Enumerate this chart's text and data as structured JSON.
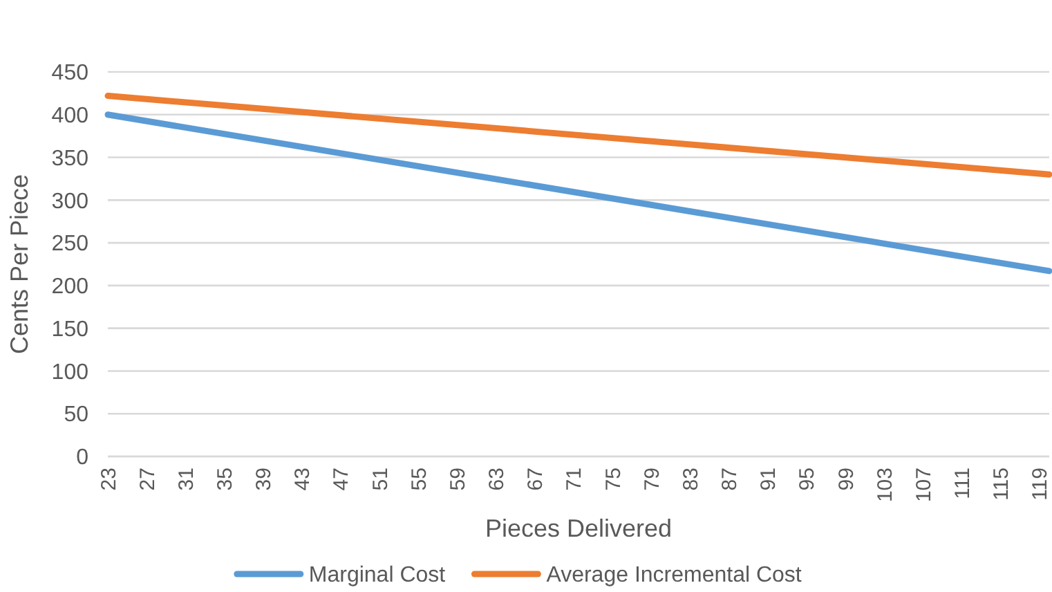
{
  "chart_data": {
    "type": "line",
    "xlabel": "Pieces Delivered",
    "ylabel": "Cents Per Piece",
    "x": [
      23,
      120
    ],
    "xlim": [
      23,
      120
    ],
    "xticks": [
      23,
      27,
      31,
      35,
      39,
      43,
      47,
      51,
      55,
      59,
      63,
      67,
      71,
      75,
      79,
      83,
      87,
      91,
      95,
      99,
      103,
      107,
      111,
      115,
      119
    ],
    "ylim": [
      0,
      450
    ],
    "yticks": [
      0,
      50,
      100,
      150,
      200,
      250,
      300,
      350,
      400,
      450
    ],
    "grid": "y",
    "legend": "bottom",
    "marker": "none",
    "line_style": "solid",
    "series": [
      {
        "name": "Marginal Cost",
        "color": "#5b9bd5",
        "values": [
          400,
          217
        ]
      },
      {
        "name": "Average Incremental Cost",
        "color": "#ed7d31",
        "values": [
          422,
          330
        ]
      }
    ]
  }
}
